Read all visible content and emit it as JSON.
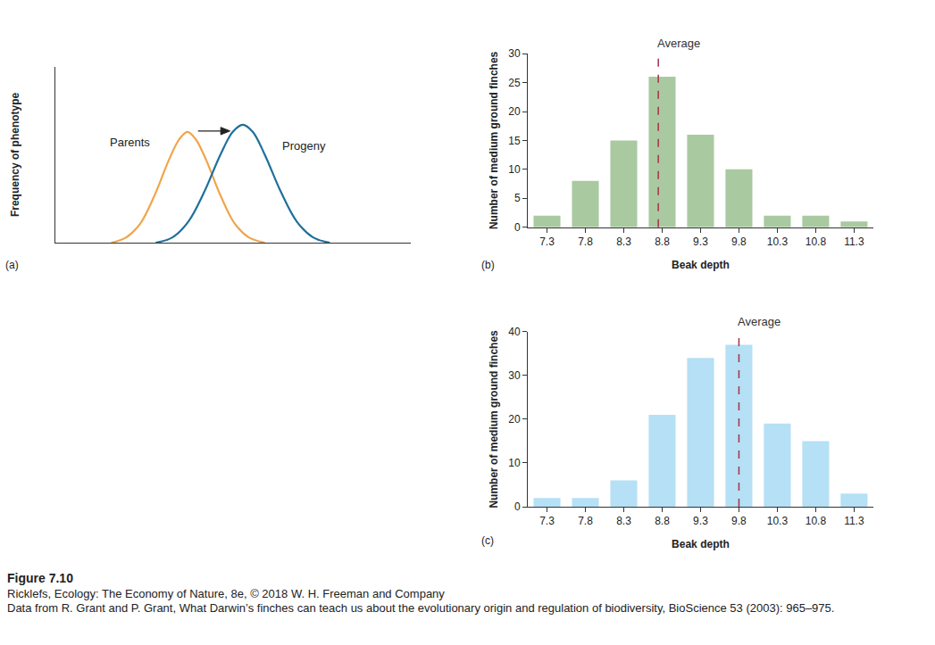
{
  "chart_data": [
    {
      "panel": "(a)",
      "type": "line",
      "y_label": "Frequency of phenotype",
      "xlim": [
        0,
        100
      ],
      "ylim": [
        0,
        100
      ],
      "tick_labels": false,
      "grid": false,
      "series": [
        {
          "name": "Parents",
          "color": "#f0a54b",
          "x": [
            15.8,
            20,
            24,
            28,
            32,
            35,
            37.2,
            39.5,
            42.5,
            46.5,
            50.5,
            54.5,
            59
          ],
          "values": [
            0,
            3,
            11,
            27,
            47,
            59,
            63,
            59,
            47,
            27,
            11,
            3,
            0
          ]
        },
        {
          "name": "Progeny",
          "color": "#1f6f9b",
          "x": [
            28.3,
            33,
            37.5,
            42,
            46.5,
            50,
            52.8,
            55.6,
            59,
            63.5,
            68,
            72.6,
            77.3
          ],
          "values": [
            0,
            3,
            12,
            29,
            50,
            63,
            67,
            63,
            50,
            29,
            12,
            3,
            0
          ]
        }
      ]
    },
    {
      "panel": "(b)",
      "type": "bar",
      "x_label": "Beak depth",
      "y_label": "Number of medium ground finches",
      "x": [
        7.3,
        7.8,
        8.3,
        8.8,
        9.3,
        9.8,
        10.3,
        10.8,
        11.3
      ],
      "values": [
        2,
        8,
        15,
        26,
        16,
        10,
        2,
        2,
        1
      ],
      "color": "#a9c9a1",
      "xlim": [
        7.05,
        11.55
      ],
      "ylim": [
        0,
        30
      ],
      "xticks": [
        7.3,
        7.8,
        8.3,
        8.8,
        9.3,
        9.8,
        10.3,
        10.8,
        11.3
      ],
      "yticks": [
        0,
        5,
        10,
        15,
        20,
        25,
        30
      ],
      "average": 8.75,
      "average_label": "Average",
      "grid": false
    },
    {
      "panel": "(c)",
      "type": "bar",
      "x_label": "Beak depth",
      "y_label": "Number of medium ground finches",
      "x": [
        7.3,
        7.8,
        8.3,
        8.8,
        9.3,
        9.8,
        10.3,
        10.8,
        11.3
      ],
      "values": [
        2,
        2,
        6,
        21,
        34,
        37,
        19,
        15,
        3
      ],
      "color": "#b5e0f5",
      "xlim": [
        7.05,
        11.55
      ],
      "ylim": [
        0,
        40
      ],
      "xticks": [
        7.3,
        7.8,
        8.3,
        8.8,
        9.3,
        9.8,
        10.3,
        10.8,
        11.3
      ],
      "yticks": [
        0,
        10,
        20,
        30,
        40
      ],
      "average": 9.8,
      "average_label": "Average",
      "grid": false
    }
  ],
  "caption": {
    "figure": "Figure 7.10",
    "credit": "Ricklefs, Ecology: The Economy of Nature, 8e, © 2018 W. H. Freeman and Company",
    "source": "Data from R. Grant and P. Grant, What Darwin’s finches can teach us about the evolutionary origin and regulation of biodiversity, BioScience 53 (2003): 965–975."
  }
}
